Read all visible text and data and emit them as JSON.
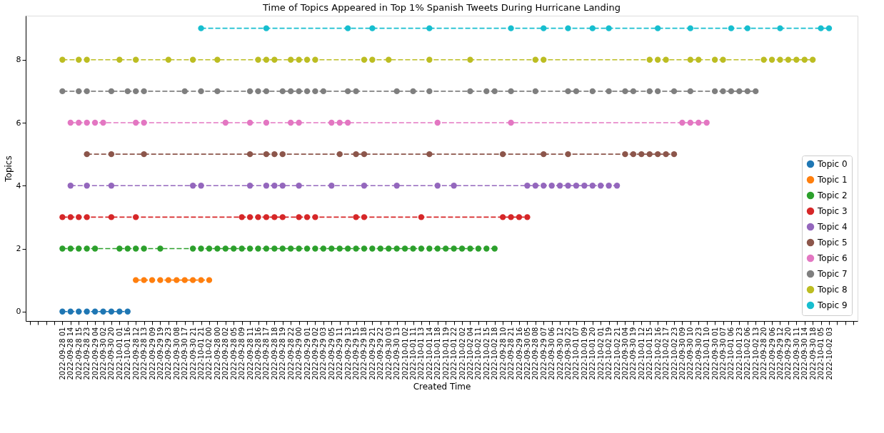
{
  "chart_data": {
    "type": "line",
    "title": "Time of Topics Appeared in Top 1% Spanish Tweets During Hurricane Landing",
    "xlabel": "Created Time",
    "ylabel": "Topics",
    "categories": [
      null,
      null,
      null,
      null,
      "2022-09-28 01",
      "2022-09-28 14",
      "2022-09-28 15",
      "2022-09-28 23",
      "2022-09-29 04",
      "2022-09-30 02",
      "2022-09-30 20",
      "2022-10-01 01",
      "2022-10-01 16",
      "2022-09-28 12",
      "2022-09-28 13",
      "2022-09-29 09",
      "2022-09-29 19",
      "2022-09-29 23",
      "2022-09-30 08",
      "2022-09-30 17",
      "2022-09-30 21",
      "2022-10-01 21",
      "2022-10-02 00",
      "2022-09-28 00",
      "2022-09-28 02",
      "2022-09-28 05",
      "2022-09-28 09",
      "2022-09-28 11",
      "2022-09-28 16",
      "2022-09-28 17",
      "2022-09-28 18",
      "2022-09-28 19",
      "2022-09-28 22",
      "2022-09-29 00",
      "2022-09-29 01",
      "2022-09-29 02",
      "2022-09-29 03",
      "2022-09-29 05",
      "2022-09-29 11",
      "2022-09-29 13",
      "2022-09-29 15",
      "2022-09-29 18",
      "2022-09-29 21",
      "2022-09-29 22",
      "2022-09-30 03",
      "2022-09-30 13",
      "2022-10-01 02",
      "2022-10-01 11",
      "2022-10-01 13",
      "2022-10-01 14",
      "2022-10-01 18",
      "2022-10-01 19",
      "2022-10-01 22",
      "2022-10-02 02",
      "2022-10-02 04",
      "2022-10-02 11",
      "2022-10-02 15",
      "2022-10-02 18",
      "2022-09-28 10",
      "2022-09-28 21",
      "2022-09-29 16",
      "2022-09-30 05",
      "2022-09-28 08",
      "2022-09-29 07",
      "2022-09-30 06",
      "2022-09-30 12",
      "2022-09-30 22",
      "2022-10-01 07",
      "2022-10-01 09",
      "2022-10-01 20",
      "2022-10-02 01",
      "2022-10-02 19",
      "2022-10-02 21",
      "2022-09-30 04",
      "2022-09-30 19",
      "2022-10-01 12",
      "2022-10-01 15",
      "2022-10-02 16",
      "2022-10-02 17",
      "2022-10-02 23",
      "2022-09-30 09",
      "2022-09-30 10",
      "2022-09-30 23",
      "2022-10-01 10",
      "2022-09-30 01",
      "2022-09-30 07",
      "2022-10-01 06",
      "2022-10-01 23",
      "2022-10-02 06",
      "2022-10-02 13",
      "2022-09-28 20",
      "2022-09-29 06",
      "2022-09-29 12",
      "2022-09-29 20",
      "2022-09-30 11",
      "2022-09-30 14",
      "2022-09-30 18",
      "2022-10-01 05",
      "2022-10-02 03",
      null,
      null,
      null
    ],
    "series": [
      {
        "name": "Topic 0",
        "color": "#1f77b4",
        "values": [
          null,
          null,
          null,
          null,
          0,
          0,
          0,
          0,
          0,
          0,
          0,
          0,
          0,
          null,
          null,
          null,
          null,
          null,
          null,
          null,
          null,
          null,
          null,
          null,
          null,
          null,
          null,
          null,
          null,
          null,
          null,
          null,
          null,
          null,
          null,
          null,
          null,
          null,
          null,
          null,
          null,
          null,
          null,
          null,
          null,
          null,
          null,
          null,
          null,
          null,
          null,
          null,
          null,
          null,
          null,
          null,
          null,
          null,
          null,
          null,
          null,
          null,
          null,
          null,
          null,
          null,
          null,
          null,
          null,
          null,
          null,
          null,
          null,
          null,
          null,
          null,
          null,
          null,
          null,
          null,
          null,
          null,
          null,
          null,
          null,
          null,
          null,
          null,
          null,
          null,
          null,
          null,
          null,
          null,
          null,
          null,
          null,
          null,
          null,
          null,
          null,
          null
        ]
      },
      {
        "name": "Topic 1",
        "color": "#ff7f0e",
        "values": [
          null,
          null,
          null,
          null,
          null,
          null,
          null,
          null,
          null,
          null,
          null,
          null,
          null,
          1,
          1,
          1,
          1,
          1,
          1,
          1,
          1,
          1,
          1,
          null,
          null,
          null,
          null,
          null,
          null,
          null,
          null,
          null,
          null,
          null,
          null,
          null,
          null,
          null,
          null,
          null,
          null,
          null,
          null,
          null,
          null,
          null,
          null,
          null,
          null,
          null,
          null,
          null,
          null,
          null,
          null,
          null,
          null,
          null,
          null,
          null,
          null,
          null,
          null,
          null,
          null,
          null,
          null,
          null,
          null,
          null,
          null,
          null,
          null,
          null,
          null,
          null,
          null,
          null,
          null,
          null,
          null,
          null,
          null,
          null,
          null,
          null,
          null,
          null,
          null,
          null,
          null,
          null,
          null,
          null,
          null,
          null,
          null,
          null,
          null,
          null,
          null,
          null
        ]
      },
      {
        "name": "Topic 2",
        "color": "#2ca02c",
        "values": [
          null,
          null,
          null,
          null,
          2,
          2,
          2,
          2,
          2,
          null,
          null,
          2,
          2,
          2,
          2,
          null,
          2,
          null,
          null,
          null,
          2,
          2,
          2,
          2,
          2,
          2,
          2,
          2,
          2,
          2,
          2,
          2,
          2,
          2,
          2,
          2,
          2,
          2,
          2,
          2,
          2,
          2,
          2,
          2,
          2,
          2,
          2,
          2,
          2,
          2,
          2,
          2,
          2,
          2,
          2,
          2,
          2,
          2,
          null,
          null,
          null,
          null,
          null,
          null,
          null,
          null,
          null,
          null,
          null,
          null,
          null,
          null,
          null,
          null,
          null,
          null,
          null,
          null,
          null,
          null,
          null,
          null,
          null,
          null,
          null,
          null,
          null,
          null,
          null,
          null,
          null,
          null,
          null,
          null,
          null,
          null,
          null,
          null,
          null,
          null,
          null,
          null
        ]
      },
      {
        "name": "Topic 3",
        "color": "#d62728",
        "values": [
          null,
          null,
          null,
          null,
          3,
          3,
          3,
          3,
          null,
          null,
          3,
          null,
          null,
          3,
          null,
          null,
          null,
          null,
          null,
          null,
          null,
          null,
          null,
          null,
          null,
          null,
          3,
          3,
          3,
          3,
          3,
          3,
          null,
          3,
          3,
          3,
          null,
          null,
          null,
          null,
          3,
          3,
          null,
          null,
          null,
          null,
          null,
          null,
          3,
          null,
          null,
          null,
          null,
          null,
          null,
          null,
          null,
          null,
          3,
          3,
          3,
          3,
          null,
          null,
          null,
          null,
          null,
          null,
          null,
          null,
          null,
          null,
          null,
          null,
          null,
          null,
          null,
          null,
          null,
          null,
          null,
          null,
          null,
          null,
          null,
          null,
          null,
          null,
          null,
          null,
          null,
          null,
          null,
          null,
          null,
          null,
          null,
          null,
          null,
          null,
          null,
          null
        ]
      },
      {
        "name": "Topic 4",
        "color": "#9467bd",
        "values": [
          null,
          null,
          null,
          null,
          null,
          4,
          null,
          4,
          null,
          null,
          4,
          null,
          null,
          null,
          null,
          null,
          null,
          null,
          null,
          null,
          4,
          4,
          null,
          null,
          null,
          null,
          null,
          4,
          null,
          4,
          4,
          4,
          null,
          4,
          null,
          null,
          null,
          4,
          null,
          null,
          null,
          4,
          null,
          null,
          null,
          4,
          null,
          null,
          null,
          null,
          4,
          null,
          4,
          null,
          null,
          null,
          null,
          null,
          null,
          null,
          null,
          4,
          4,
          4,
          4,
          4,
          4,
          4,
          4,
          4,
          4,
          4,
          4,
          null,
          null,
          null,
          null,
          null,
          null,
          null,
          null,
          null,
          null,
          null,
          null,
          null,
          null,
          null,
          null,
          null,
          null,
          null,
          null,
          null,
          null,
          null,
          null,
          null,
          null,
          null,
          null,
          null
        ]
      },
      {
        "name": "Topic 5",
        "color": "#8c564b",
        "values": [
          null,
          null,
          null,
          null,
          null,
          null,
          null,
          5,
          null,
          null,
          5,
          null,
          null,
          null,
          5,
          null,
          null,
          null,
          null,
          null,
          null,
          null,
          null,
          null,
          null,
          null,
          null,
          5,
          null,
          5,
          5,
          5,
          null,
          null,
          null,
          null,
          null,
          null,
          5,
          null,
          5,
          5,
          null,
          null,
          null,
          null,
          null,
          null,
          null,
          5,
          null,
          null,
          null,
          null,
          null,
          null,
          null,
          null,
          5,
          null,
          null,
          null,
          null,
          5,
          null,
          null,
          5,
          null,
          null,
          null,
          null,
          null,
          null,
          5,
          5,
          5,
          5,
          5,
          5,
          5,
          null,
          null,
          null,
          null,
          null,
          null,
          null,
          null,
          null,
          null,
          null,
          null,
          null,
          null,
          null,
          null,
          null,
          null,
          null,
          null,
          null,
          null
        ]
      },
      {
        "name": "Topic 6",
        "color": "#e377c2",
        "values": [
          null,
          null,
          null,
          null,
          null,
          6,
          6,
          6,
          6,
          6,
          null,
          null,
          null,
          6,
          6,
          null,
          null,
          null,
          null,
          null,
          null,
          null,
          null,
          null,
          6,
          null,
          null,
          6,
          null,
          6,
          null,
          null,
          6,
          6,
          null,
          null,
          null,
          6,
          6,
          6,
          null,
          null,
          null,
          null,
          null,
          null,
          null,
          null,
          null,
          null,
          6,
          null,
          null,
          null,
          null,
          null,
          null,
          null,
          null,
          6,
          null,
          null,
          null,
          null,
          null,
          null,
          null,
          null,
          null,
          null,
          null,
          null,
          null,
          null,
          null,
          null,
          null,
          null,
          null,
          null,
          6,
          6,
          6,
          6,
          null,
          null,
          null,
          null,
          null,
          null,
          null,
          null,
          null,
          null,
          null,
          null,
          null,
          null,
          null,
          null,
          null,
          null
        ]
      },
      {
        "name": "Topic 7",
        "color": "#7f7f7f",
        "values": [
          null,
          null,
          null,
          null,
          7,
          null,
          7,
          7,
          null,
          null,
          7,
          null,
          7,
          7,
          7,
          null,
          null,
          null,
          null,
          7,
          null,
          7,
          null,
          7,
          null,
          null,
          null,
          7,
          7,
          7,
          null,
          7,
          7,
          7,
          7,
          7,
          7,
          null,
          null,
          7,
          7,
          null,
          null,
          null,
          null,
          7,
          null,
          7,
          null,
          7,
          null,
          null,
          null,
          null,
          7,
          null,
          7,
          7,
          null,
          7,
          null,
          null,
          7,
          null,
          null,
          null,
          7,
          7,
          null,
          7,
          null,
          7,
          null,
          7,
          7,
          null,
          7,
          7,
          null,
          7,
          null,
          7,
          null,
          null,
          7,
          7,
          7,
          7,
          7,
          7,
          null,
          null,
          null,
          null,
          null,
          null,
          null,
          null,
          null,
          null,
          null,
          null
        ]
      },
      {
        "name": "Topic 8",
        "color": "#bcbd22",
        "values": [
          null,
          null,
          null,
          null,
          8,
          null,
          8,
          8,
          null,
          null,
          null,
          8,
          null,
          8,
          null,
          null,
          null,
          8,
          null,
          null,
          8,
          null,
          null,
          8,
          null,
          null,
          null,
          null,
          8,
          8,
          8,
          null,
          8,
          8,
          8,
          8,
          null,
          null,
          null,
          null,
          null,
          8,
          8,
          null,
          8,
          null,
          null,
          null,
          null,
          8,
          null,
          null,
          null,
          null,
          8,
          null,
          null,
          null,
          null,
          null,
          null,
          null,
          8,
          8,
          null,
          null,
          null,
          null,
          null,
          null,
          null,
          null,
          null,
          null,
          null,
          null,
          8,
          8,
          8,
          null,
          null,
          8,
          8,
          null,
          8,
          8,
          null,
          null,
          null,
          null,
          8,
          8,
          8,
          8,
          8,
          8,
          8,
          null,
          null,
          null,
          null,
          null
        ]
      },
      {
        "name": "Topic 9",
        "color": "#17becf",
        "values": [
          null,
          null,
          null,
          null,
          null,
          null,
          null,
          null,
          null,
          null,
          null,
          null,
          null,
          null,
          null,
          null,
          null,
          null,
          null,
          null,
          null,
          9,
          null,
          null,
          null,
          null,
          null,
          null,
          null,
          9,
          null,
          null,
          null,
          null,
          null,
          null,
          null,
          null,
          null,
          9,
          null,
          null,
          9,
          null,
          null,
          null,
          null,
          null,
          null,
          9,
          null,
          null,
          null,
          null,
          null,
          null,
          null,
          null,
          null,
          9,
          null,
          null,
          null,
          9,
          null,
          null,
          9,
          null,
          null,
          9,
          null,
          9,
          null,
          null,
          null,
          null,
          null,
          9,
          null,
          null,
          null,
          9,
          null,
          null,
          null,
          null,
          9,
          null,
          9,
          null,
          null,
          null,
          9,
          null,
          null,
          null,
          null,
          9,
          9,
          null,
          null,
          null
        ]
      }
    ],
    "ylim": [
      -0.3,
      9.4
    ],
    "yticks": [
      0,
      2,
      4,
      6,
      8
    ],
    "grid": false,
    "legend": "bottom right",
    "marker": "circle",
    "line_style": "dashed"
  }
}
